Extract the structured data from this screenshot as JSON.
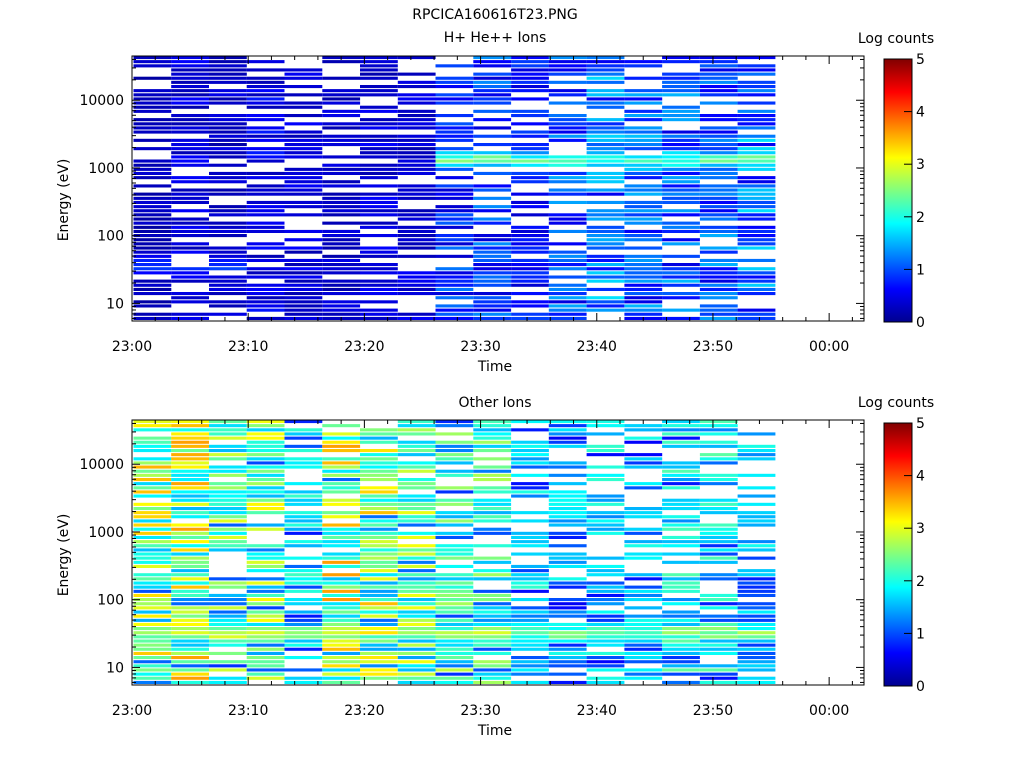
{
  "figure_title": "RPCICA160616T23.PNG",
  "colors": {
    "scale": [
      "#00008f",
      "#0000ff",
      "#0080ff",
      "#00ffff",
      "#80ff80",
      "#ffff00",
      "#ff8000",
      "#ff0000",
      "#800000"
    ]
  },
  "chart_data": [
    {
      "type": "heatmap",
      "title": "H+ He++ Ions",
      "xlabel": "Time",
      "ylabel": "Energy (eV)",
      "x_ticks": [
        "23:00",
        "23:10",
        "23:20",
        "23:30",
        "23:40",
        "23:50",
        "00:00"
      ],
      "x_range_min": [
        0,
        63
      ],
      "y_scale": "log",
      "y_ticks": [
        "10",
        "100",
        "1000",
        "10000"
      ],
      "y_range_eV": [
        5.5,
        45000
      ],
      "colorbar": {
        "label": "Log counts",
        "ticks": [
          "0",
          "1",
          "2",
          "3",
          "4",
          "5"
        ],
        "range": [
          0,
          5
        ]
      },
      "time_bins_min": [
        1.75,
        5,
        8.25,
        11.5,
        14.75,
        18,
        21.25,
        24.5,
        27.75,
        31,
        34.25,
        37.5,
        40.75,
        44,
        47.25,
        50.5,
        53.75
      ],
      "profile_center_log_counts": [
        0.3,
        0.5,
        0.4,
        0.6,
        0.5,
        0.4,
        0.5,
        0.5,
        1.0,
        1.1,
        0.8,
        1.2,
        1.4,
        1.3,
        1.3,
        1.2,
        1.4
      ],
      "features": [
        {
          "energy_eV": 1300,
          "log_counts_peak": 2.6,
          "from_min": 26,
          "to_min": 56
        },
        {
          "energy_eV": 2800,
          "log_counts_peak": 1.8,
          "from_min": 39,
          "to_min": 47
        },
        {
          "energy_eV": 35,
          "log_counts_peak": 1.1,
          "from_min": 0,
          "to_min": 11
        }
      ]
    },
    {
      "type": "heatmap",
      "title": "Other Ions",
      "xlabel": "Time",
      "ylabel": "Energy (eV)",
      "x_ticks": [
        "23:00",
        "23:10",
        "23:20",
        "23:30",
        "23:40",
        "23:50",
        "00:00"
      ],
      "x_range_min": [
        0,
        63
      ],
      "y_scale": "log",
      "y_ticks": [
        "10",
        "100",
        "1000",
        "10000"
      ],
      "y_range_eV": [
        5.5,
        45000
      ],
      "colorbar": {
        "label": "Log counts",
        "ticks": [
          "0",
          "1",
          "2",
          "3",
          "4",
          "5"
        ],
        "range": [
          0,
          5
        ]
      },
      "time_bins_min": [
        1.75,
        5,
        8.25,
        11.5,
        14.75,
        18,
        21.25,
        24.5,
        27.75,
        31,
        34.25,
        37.5,
        40.75,
        44,
        47.25,
        50.5,
        53.75
      ],
      "profile_center_log_counts": [
        2.8,
        2.9,
        2.4,
        2.6,
        1.8,
        3.0,
        2.8,
        2.5,
        2.3,
        2.2,
        1.7,
        1.6,
        1.7,
        1.6,
        1.9,
        1.9,
        1.6
      ],
      "features": [
        {
          "energy_eV": 32,
          "log_counts_peak": 3.0,
          "from_min": 0,
          "to_min": 56
        },
        {
          "energy_eV": 1250,
          "log_counts_peak": 1.6,
          "from_min": 30,
          "to_min": 56
        }
      ]
    }
  ]
}
